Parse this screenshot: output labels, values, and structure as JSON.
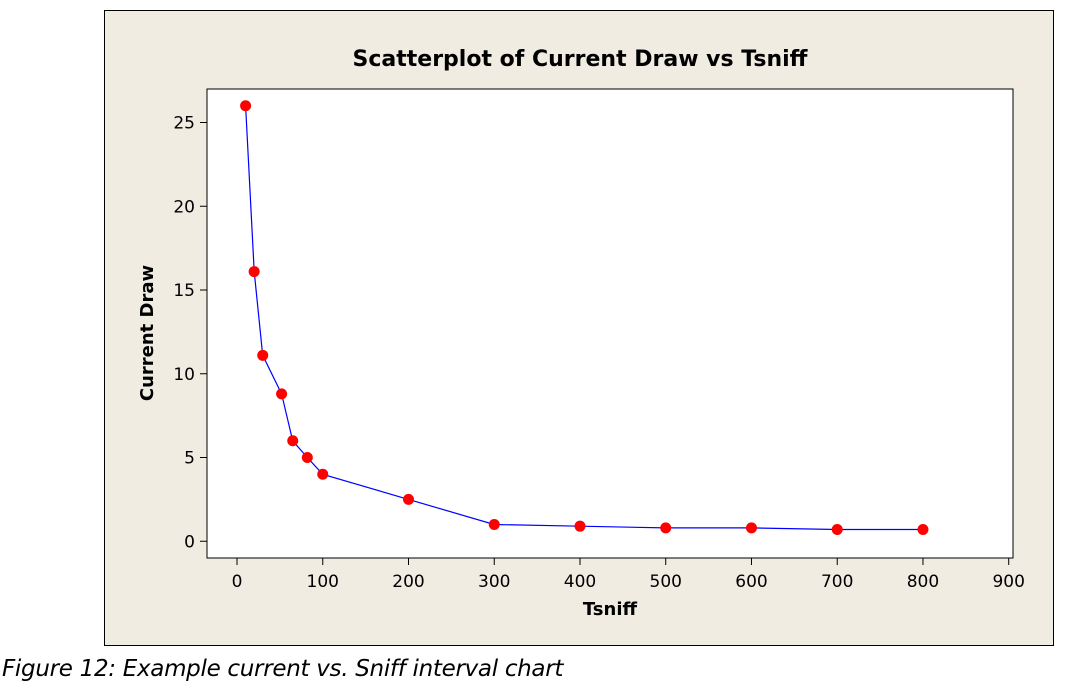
{
  "chart_data": {
    "type": "scatter",
    "title": "Scatterplot of Current Draw vs Tsniff",
    "xlabel": "Tsniff",
    "ylabel": "Current Draw",
    "xlim": [
      -35,
      905
    ],
    "ylim": [
      -1,
      27
    ],
    "xticks": [
      0,
      100,
      200,
      300,
      400,
      500,
      600,
      700,
      800,
      900
    ],
    "yticks": [
      0,
      5,
      10,
      15,
      20,
      25
    ],
    "grid": false,
    "connect_points": true,
    "line_color": "#0000ff",
    "marker_color": "#ff0000",
    "series": [
      {
        "x": [
          10,
          20,
          30,
          52,
          65,
          82,
          100,
          200,
          300,
          400,
          500,
          600,
          700,
          800
        ],
        "y": [
          26,
          16.1,
          11.1,
          8.8,
          6,
          5,
          4,
          2.5,
          1,
          0.9,
          0.8,
          0.8,
          0.7,
          0.7
        ]
      }
    ]
  },
  "caption": "Figure 12: Example current vs. Sniff interval chart"
}
